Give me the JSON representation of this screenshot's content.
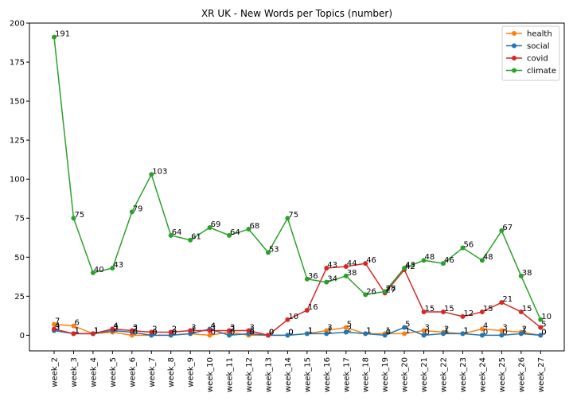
{
  "chart_data": {
    "type": "line",
    "title": "XR UK - New Words per Topics (number)",
    "xlabel": "",
    "ylabel": "",
    "ylim": [
      -10,
      200
    ],
    "yticks": [
      0,
      25,
      50,
      75,
      100,
      125,
      150,
      175,
      200
    ],
    "grid": false,
    "legend_position": "top-right",
    "categories": [
      "week_2",
      "week_3",
      "week_4",
      "week_5",
      "week_6",
      "week_7",
      "week_8",
      "week_9",
      "week_10",
      "week_11",
      "week_12",
      "week_13",
      "week_14",
      "week_15",
      "week_16",
      "week_17",
      "week_18",
      "week_19",
      "week_20",
      "week_21",
      "week_22",
      "week_23",
      "week_24",
      "week_25",
      "week_26",
      "week_27"
    ],
    "series": [
      {
        "name": "health",
        "color": "#ff7f0e",
        "values": [
          7,
          6,
          1,
          2,
          0,
          0,
          0,
          1,
          0,
          2,
          0,
          0,
          0,
          1,
          3,
          5,
          1,
          1,
          1,
          3,
          2,
          1,
          4,
          3,
          2,
          0
        ]
      },
      {
        "name": "social",
        "color": "#1f77b4",
        "values": [
          3,
          1,
          1,
          3,
          2,
          0,
          0,
          1,
          4,
          0,
          1,
          0,
          0,
          1,
          1,
          2,
          1,
          0,
          5,
          0,
          1,
          1,
          0,
          0,
          1,
          0
        ]
      },
      {
        "name": "covid",
        "color": "#d62728",
        "values": [
          4,
          1,
          1,
          4,
          3,
          2,
          2,
          3,
          3,
          3,
          3,
          0,
          10,
          16,
          43,
          44,
          46,
          27,
          42,
          15,
          15,
          12,
          15,
          21,
          15,
          5
        ]
      },
      {
        "name": "climate",
        "color": "#2ca02c",
        "values": [
          191,
          75,
          40,
          43,
          79,
          103,
          64,
          61,
          69,
          64,
          68,
          53,
          75,
          36,
          34,
          38,
          26,
          28,
          43,
          48,
          46,
          56,
          48,
          67,
          38,
          10
        ]
      }
    ]
  }
}
